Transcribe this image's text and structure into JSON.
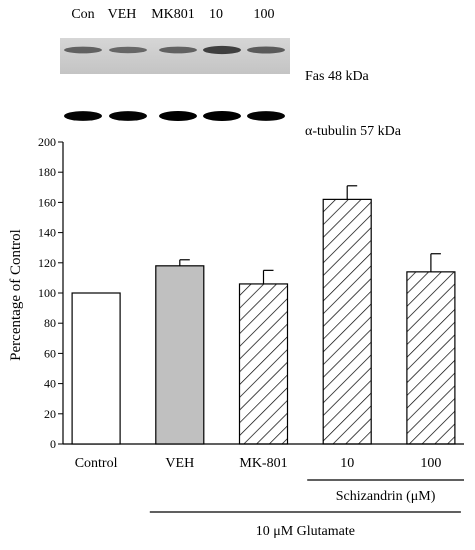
{
  "blot": {
    "lane_labels": [
      "Con",
      "VEH",
      "MK801",
      "10",
      "100"
    ],
    "bands": [
      {
        "label": "Fas 48 kDa",
        "intensities": [
          0.55,
          0.5,
          0.55,
          0.85,
          0.6
        ]
      },
      {
        "label": "α-tubulin 57 kDa",
        "intensities": [
          0.95,
          0.95,
          1.0,
          1.0,
          0.95
        ]
      }
    ]
  },
  "chart_data": {
    "type": "bar",
    "categories": [
      "Control",
      "VEH",
      "MK-801",
      "10",
      "100"
    ],
    "values": [
      100,
      118,
      106,
      162,
      114
    ],
    "errors": [
      0,
      4,
      9,
      9,
      12
    ],
    "fills": [
      "white",
      "gray",
      "hatch",
      "hatch",
      "hatch"
    ],
    "ylabel": "Percentage of Control",
    "ylim": [
      0,
      200
    ],
    "yticks": [
      0,
      20,
      40,
      60,
      80,
      100,
      120,
      140,
      160,
      180,
      200
    ],
    "grid": false,
    "group_labels": [
      {
        "label": "Schizandrin (μM)",
        "categories": [
          "10",
          "100"
        ]
      },
      {
        "label": "10 μM Glutamate",
        "categories": [
          "VEH",
          "MK-801",
          "10",
          "100"
        ]
      }
    ],
    "colors": {
      "gray_fill": "#c0c0c0",
      "bar_stroke": "#000000"
    }
  }
}
